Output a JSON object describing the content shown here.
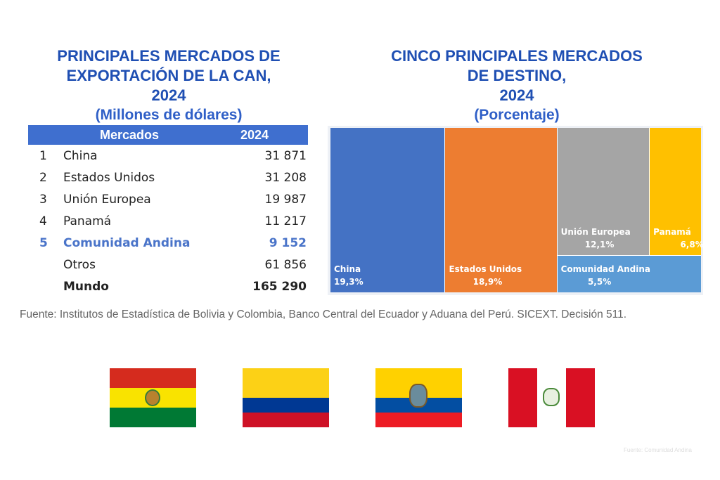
{
  "left": {
    "title_lines": [
      "PRINCIPALES MERCADOS DE",
      "EXPORTACIÓN DE LA CAN,",
      "2024"
    ],
    "subtitle": "(Millones de dólares)",
    "table": {
      "headers": [
        "Mercados",
        "2024"
      ],
      "rows": [
        {
          "rank": "1",
          "market": "China",
          "value": "31 871"
        },
        {
          "rank": "2",
          "market": "Estados Unidos",
          "value": "31 208"
        },
        {
          "rank": "3",
          "market": "Unión Europea",
          "value": "19 987"
        },
        {
          "rank": "4",
          "market": "Panamá",
          "value": "11 217"
        },
        {
          "rank": "5",
          "market": "Comunidad Andina",
          "value": "9 152"
        },
        {
          "rank": "",
          "market": "Otros",
          "value": "61 856"
        },
        {
          "rank": "",
          "market": "Mundo",
          "value": "165 290"
        }
      ]
    }
  },
  "chart_data": {
    "type": "treemap",
    "title_lines": [
      "CINCO PRINCIPALES MERCADOS",
      "DE DESTINO,",
      "2024"
    ],
    "subtitle": "(Porcentaje)",
    "items": [
      {
        "label": "China",
        "value": 19.3,
        "text": "19,3%",
        "color": "#4472c4"
      },
      {
        "label": "Estados Unidos",
        "value": 18.9,
        "text": "18,9%",
        "color": "#ed7d31"
      },
      {
        "label": "Unión Europea",
        "value": 12.1,
        "text": "12,1%",
        "color": "#a5a5a5"
      },
      {
        "label": "Panamá",
        "value": 6.8,
        "text": "6,8%",
        "color": "#ffc000"
      },
      {
        "label": "Comunidad Andina",
        "value": 5.5,
        "text": "5,5%",
        "color": "#5b9bd5"
      }
    ]
  },
  "source": "Fuente: Institutos de Estadística de Bolivia y Colombia, Banco Central del Ecuador y Aduana del Perú. SICEXT. Decisión 511.",
  "flags": [
    "bolivia-flag",
    "colombia-flag",
    "ecuador-flag",
    "peru-flag"
  ],
  "watermark": "Fuente: Comunidad Andina"
}
